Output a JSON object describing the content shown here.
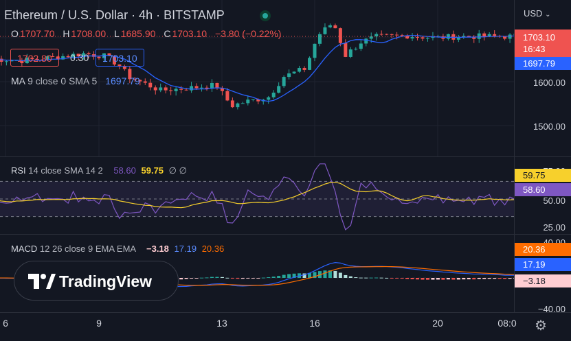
{
  "header": {
    "symbol_title": "Ethereum / U.S. Dollar · 4h · BITSTAMP",
    "ohlc": [
      {
        "key": "O",
        "value": "1707.70"
      },
      {
        "key": "H",
        "value": "1708.00"
      },
      {
        "key": "L",
        "value": "1685.90"
      },
      {
        "key": "C",
        "value": "1703.10"
      },
      {
        "key": "",
        "value": "−3.80 (−0.22%)"
      }
    ],
    "sell_price": "1702.80",
    "spread": "0.30",
    "buy_price": "1703.10",
    "ma_label": "MA",
    "ma_params": "9 close 0 SMA 5",
    "ma_value": "1697.79"
  },
  "rsi": {
    "label": "RSI",
    "params": "14 close SMA 14 2",
    "value1": "58.60",
    "value2": "59.75",
    "extra": "∅ ∅"
  },
  "macd": {
    "label": "MACD",
    "params": "12 26 close 9 EMA EMA",
    "v_hist": "−3.18",
    "v_macd": "17.19",
    "v_signal": "20.36"
  },
  "price_axis": {
    "currency": "USD",
    "labels": [
      "1600.00",
      "1500.00"
    ],
    "last_price": "1703.10",
    "countdown": "16:43",
    "ma_price": "1697.79"
  },
  "rsi_axis": {
    "labels": [
      "75.00",
      "50.00",
      "25.00"
    ],
    "tag_yellow": "59.75",
    "tag_purple": "58.60"
  },
  "macd_axis": {
    "labels": [
      "40.00",
      "−40.00"
    ],
    "tag_orange": "20.36",
    "tag_blue": "17.19",
    "tag_hist": "−3.18"
  },
  "time_axis": [
    "6",
    "9",
    "13",
    "16",
    "20",
    "08:0"
  ],
  "watermark": "TradingView",
  "colors": {
    "up": "#26a69a",
    "down": "#ef5350",
    "ma": "#2962ff",
    "rsi": "#7e57c2",
    "rsi_sma": "#f7d02c",
    "macd": "#2962ff",
    "signal": "#ff6d00",
    "bg": "#131722"
  }
}
